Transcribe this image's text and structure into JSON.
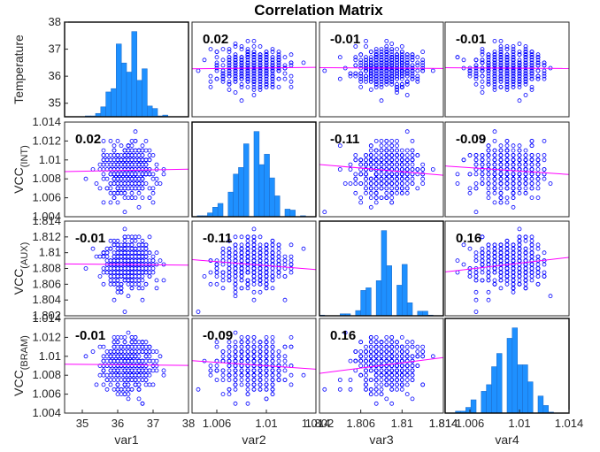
{
  "chart_data": {
    "type": "scatter",
    "title": "Correlation Matrix",
    "variables": [
      {
        "key": "var1",
        "xlabel": "var1",
        "ylabel": "Temperature",
        "ylabel_sub": "",
        "lim": [
          34.5,
          38
        ],
        "ylim": [
          34.5,
          38
        ],
        "ticks": [
          35,
          36,
          37,
          38
        ],
        "tick_labels": [
          "35",
          "36",
          "37",
          "38"
        ],
        "ytick_labels": [
          "35",
          "36",
          "37",
          "38"
        ],
        "mean": 36.3,
        "sd": 0.35
      },
      {
        "key": "var2",
        "xlabel": "var2",
        "ylabel": "VCC",
        "ylabel_sub": "(INT)",
        "lim": [
          1.004,
          1.014
        ],
        "ylim": [
          1.004,
          1.014
        ],
        "ticks": [
          1.006,
          1.01
        ],
        "tick_labels": [
          "1.006",
          "1.01"
        ],
        "ytick_labels": [
          "1.004",
          "1.006",
          "1.008",
          "1.01",
          "1.012",
          "1.014"
        ],
        "yticks": [
          1.004,
          1.006,
          1.008,
          1.01,
          1.012,
          1.014
        ],
        "mean": 1.0089,
        "sd": 0.0013
      },
      {
        "key": "var3",
        "xlabel": "var3",
        "ylabel": "VCC",
        "ylabel_sub": "(AUX)",
        "lim": [
          1.802,
          1.814
        ],
        "ylim": [
          1.802,
          1.814
        ],
        "ticks": [
          1.802,
          1.806,
          1.81,
          1.814
        ],
        "tick_labels": [
          "1.802",
          "1.806",
          "1.81",
          "1.814"
        ],
        "ytick_labels": [
          "1.802",
          "1.804",
          "1.806",
          "1.808",
          "1.81",
          "1.812",
          "1.814"
        ],
        "yticks": [
          1.802,
          1.804,
          1.806,
          1.808,
          1.81,
          1.812,
          1.814
        ],
        "mean": 1.8085,
        "sd": 0.0015
      },
      {
        "key": "var4",
        "xlabel": "var4",
        "ylabel": "VCC",
        "ylabel_sub": "(BRAM)",
        "lim": [
          1.004,
          1.014
        ],
        "ylim": [
          1.004,
          1.014
        ],
        "ticks": [
          1.006,
          1.01,
          1.014
        ],
        "tick_labels": [
          "1.006",
          "1.01",
          "1.014"
        ],
        "ytick_labels": [
          "1.004",
          "1.006",
          "1.008",
          "1.01",
          "1.012",
          "1.014"
        ],
        "yticks": [
          1.004,
          1.006,
          1.008,
          1.01,
          1.012,
          1.014
        ],
        "mean": 1.0091,
        "sd": 0.0013
      }
    ],
    "ytick_values_var1": [
      35,
      36,
      37,
      38
    ],
    "x_edge_labels": {
      "right_of_var2": "1.014",
      "right_of_var3": "1.814"
    },
    "correlations": [
      [
        1,
        0.02,
        -0.01,
        -0.01
      ],
      [
        0.02,
        1,
        -0.11,
        -0.09
      ],
      [
        -0.01,
        -0.11,
        1,
        0.16
      ],
      [
        -0.01,
        -0.09,
        0.16,
        1
      ]
    ],
    "correlation_labels": [
      [
        "",
        "0.02",
        "-0.01",
        "-0.01"
      ],
      [
        "0.02",
        "",
        "-0.11",
        "-0.09"
      ],
      [
        "-0.01",
        "-0.11",
        "",
        "0.16"
      ],
      [
        "-0.01",
        "-0.09",
        "0.16",
        ""
      ]
    ],
    "diagonal": "histogram",
    "off_diagonal": "scatter with least-squares fit line",
    "grid": false,
    "legend": "none",
    "colors": {
      "scatter": "#0000ff",
      "histogram": "#1e90ff",
      "histogram_edge": "#1e6fcf",
      "fit_line": "#ff00ff",
      "axes": "#262626"
    }
  }
}
